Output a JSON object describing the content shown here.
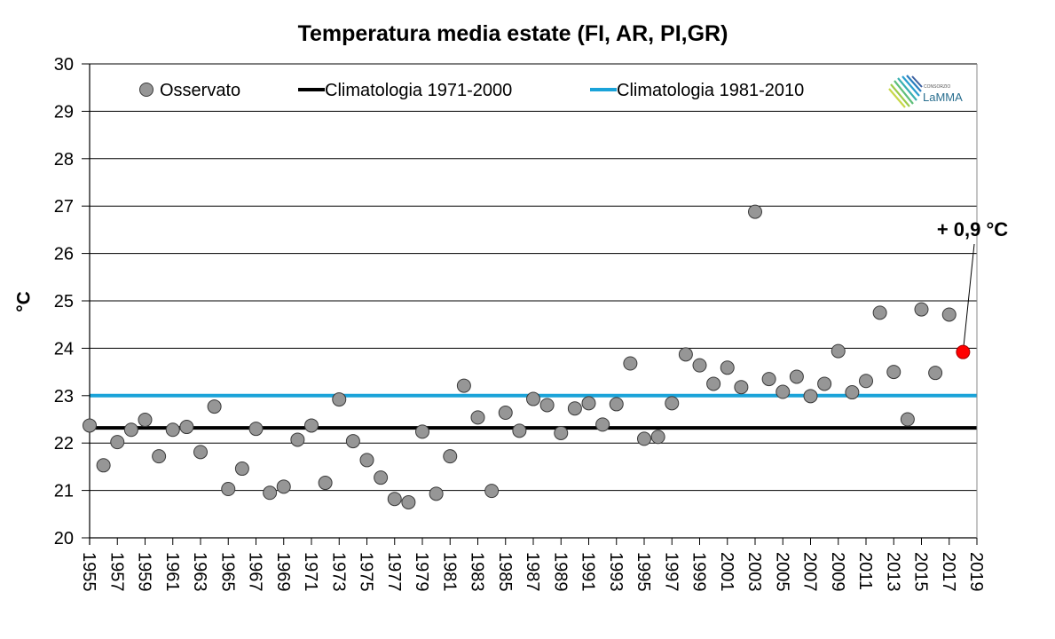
{
  "chart_data": {
    "type": "scatter",
    "title": "Temperatura media estate (FI, AR, PI,GR)",
    "xlabel": "",
    "ylabel": "°C",
    "xlim": [
      1955,
      2019
    ],
    "ylim": [
      20,
      30
    ],
    "grid": true,
    "legend_position": "top",
    "y_ticks": [
      "20",
      "21",
      "22",
      "23",
      "24",
      "25",
      "26",
      "27",
      "28",
      "29",
      "30"
    ],
    "x_ticks": [
      "1955",
      "1957",
      "1959",
      "1961",
      "1963",
      "1965",
      "1967",
      "1969",
      "1971",
      "1973",
      "1975",
      "1977",
      "1979",
      "1981",
      "1983",
      "1985",
      "1987",
      "1989",
      "1991",
      "1993",
      "1995",
      "1997",
      "1999",
      "2001",
      "2003",
      "2005",
      "2007",
      "2009",
      "2011",
      "2013",
      "2015",
      "2017",
      "2019"
    ],
    "series": [
      {
        "name": "Osservato",
        "kind": "points",
        "color": "#969696",
        "x": [
          1955,
          1956,
          1957,
          1958,
          1959,
          1960,
          1961,
          1962,
          1963,
          1964,
          1965,
          1966,
          1967,
          1968,
          1969,
          1970,
          1971,
          1972,
          1973,
          1974,
          1975,
          1976,
          1977,
          1978,
          1979,
          1980,
          1981,
          1982,
          1983,
          1984,
          1985,
          1986,
          1987,
          1988,
          1989,
          1990,
          1991,
          1992,
          1993,
          1994,
          1995,
          1996,
          1997,
          1998,
          1999,
          2000,
          2001,
          2002,
          2003,
          2004,
          2005,
          2006,
          2007,
          2008,
          2009,
          2010,
          2011,
          2012,
          2013,
          2014,
          2015,
          2016,
          2017,
          2018
        ],
        "values": [
          22.37,
          21.53,
          22.02,
          22.28,
          22.49,
          21.72,
          22.28,
          22.34,
          21.81,
          22.77,
          21.03,
          21.46,
          22.3,
          20.95,
          21.08,
          22.07,
          22.37,
          21.16,
          22.92,
          22.04,
          21.64,
          21.27,
          20.82,
          20.75,
          22.24,
          20.93,
          21.72,
          23.21,
          22.54,
          20.99,
          22.64,
          22.26,
          22.93,
          22.8,
          22.21,
          22.73,
          22.84,
          22.39,
          22.82,
          23.68,
          22.09,
          22.13,
          22.84,
          23.87,
          23.64,
          23.25,
          23.59,
          23.18,
          26.88,
          23.35,
          23.08,
          23.4,
          22.99,
          23.25,
          23.94,
          23.07,
          23.31,
          24.75,
          23.5,
          22.5,
          24.82,
          23.48,
          24.71,
          23.92
        ],
        "highlight": {
          "x": 2018,
          "color": "#ff0000"
        }
      },
      {
        "name": "Climatologia 1971-2000",
        "kind": "hline",
        "color": "#000000",
        "value": 22.32
      },
      {
        "name": "Climatologia 1981-2010",
        "kind": "hline",
        "color": "#1aa3d9",
        "value": 23.0
      }
    ],
    "annotations": [
      {
        "text": "+ 0,9 °C",
        "target_x": 2018,
        "target_y": 23.92
      }
    ]
  },
  "logo": {
    "small_text": "CONSORZIO",
    "main_text": "LaMMA"
  }
}
